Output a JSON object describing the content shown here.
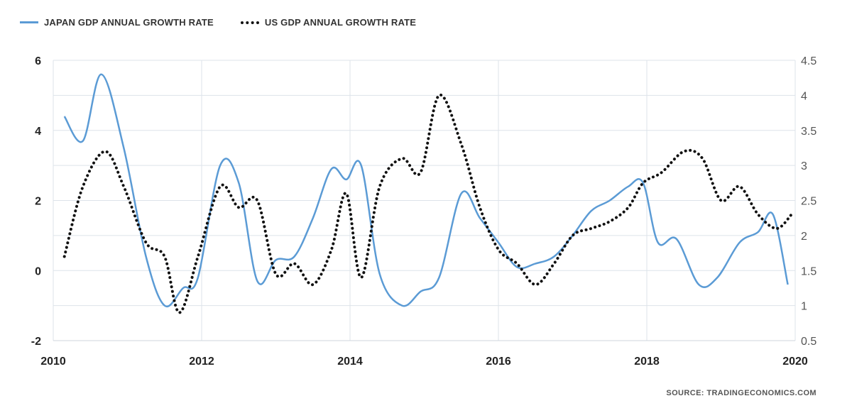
{
  "legend": {
    "japan_label": "JAPAN GDP ANNUAL GROWTH RATE",
    "us_label": "US GDP ANNUAL GROWTH RATE"
  },
  "source": "SOURCE:   TRADINGECONOMICS.COM",
  "colors": {
    "japan": "#5b9bd5",
    "us": "#111111",
    "grid": "#dde3ea"
  },
  "chart_data": {
    "type": "line",
    "title": "",
    "xlabel": "",
    "ylabel": "",
    "xlim": [
      2010,
      2020
    ],
    "ylim_left": [
      -2,
      6
    ],
    "ylim_right": [
      0.5,
      4.5
    ],
    "x_ticks": [
      "2010",
      "2012",
      "2014",
      "2016",
      "2018",
      "2020"
    ],
    "y_left_ticks": [
      "6",
      "4",
      "2",
      "0",
      "-2"
    ],
    "y_right_ticks": [
      "4.5",
      "4",
      "3.5",
      "3",
      "2.5",
      "2",
      "1.5",
      "1",
      "0.5"
    ],
    "series": [
      {
        "name": "JAPAN GDP ANNUAL GROWTH RATE",
        "axis": "left",
        "style": "solid",
        "x": [
          2010.15,
          2010.4,
          2010.65,
          2010.95,
          2011.25,
          2011.5,
          2011.75,
          2011.95,
          2012.25,
          2012.5,
          2012.75,
          2013.0,
          2013.25,
          2013.5,
          2013.75,
          2013.95,
          2014.15,
          2014.4,
          2014.7,
          2014.95,
          2015.2,
          2015.5,
          2015.75,
          2016.0,
          2016.25,
          2016.5,
          2016.75,
          2017.0,
          2017.25,
          2017.5,
          2017.75,
          2017.95,
          2018.15,
          2018.4,
          2018.7,
          2018.95,
          2019.25,
          2019.5,
          2019.7,
          2019.9
        ],
        "y": [
          4.4,
          3.7,
          5.6,
          3.5,
          0.4,
          -1.0,
          -0.5,
          -0.2,
          3.0,
          2.5,
          -0.3,
          0.3,
          0.4,
          1.5,
          2.9,
          2.6,
          3.0,
          -0.1,
          -1.0,
          -0.6,
          -0.2,
          2.2,
          1.5,
          0.8,
          0.1,
          0.2,
          0.4,
          1.0,
          1.7,
          2.0,
          2.4,
          2.5,
          0.8,
          0.9,
          -0.4,
          -0.2,
          0.8,
          1.1,
          1.6,
          -0.4
        ]
      },
      {
        "name": "US GDP ANNUAL GROWTH RATE",
        "axis": "right",
        "style": "dotted",
        "x": [
          2010.15,
          2010.4,
          2010.7,
          2010.95,
          2011.25,
          2011.5,
          2011.7,
          2011.95,
          2012.25,
          2012.5,
          2012.75,
          2013.0,
          2013.25,
          2013.5,
          2013.75,
          2013.95,
          2014.15,
          2014.4,
          2014.7,
          2014.95,
          2015.2,
          2015.5,
          2015.75,
          2016.0,
          2016.25,
          2016.5,
          2016.75,
          2017.0,
          2017.25,
          2017.5,
          2017.75,
          2017.95,
          2018.2,
          2018.5,
          2018.75,
          2019.0,
          2019.25,
          2019.5,
          2019.75,
          2019.95
        ],
        "y": [
          1.7,
          2.7,
          3.2,
          2.7,
          1.9,
          1.7,
          0.9,
          1.7,
          2.7,
          2.4,
          2.5,
          1.45,
          1.6,
          1.3,
          1.8,
          2.6,
          1.4,
          2.7,
          3.1,
          2.9,
          4.0,
          3.3,
          2.4,
          1.8,
          1.6,
          1.3,
          1.6,
          2.0,
          2.1,
          2.2,
          2.4,
          2.75,
          2.9,
          3.2,
          3.1,
          2.5,
          2.7,
          2.3,
          2.1,
          2.3
        ]
      }
    ]
  }
}
